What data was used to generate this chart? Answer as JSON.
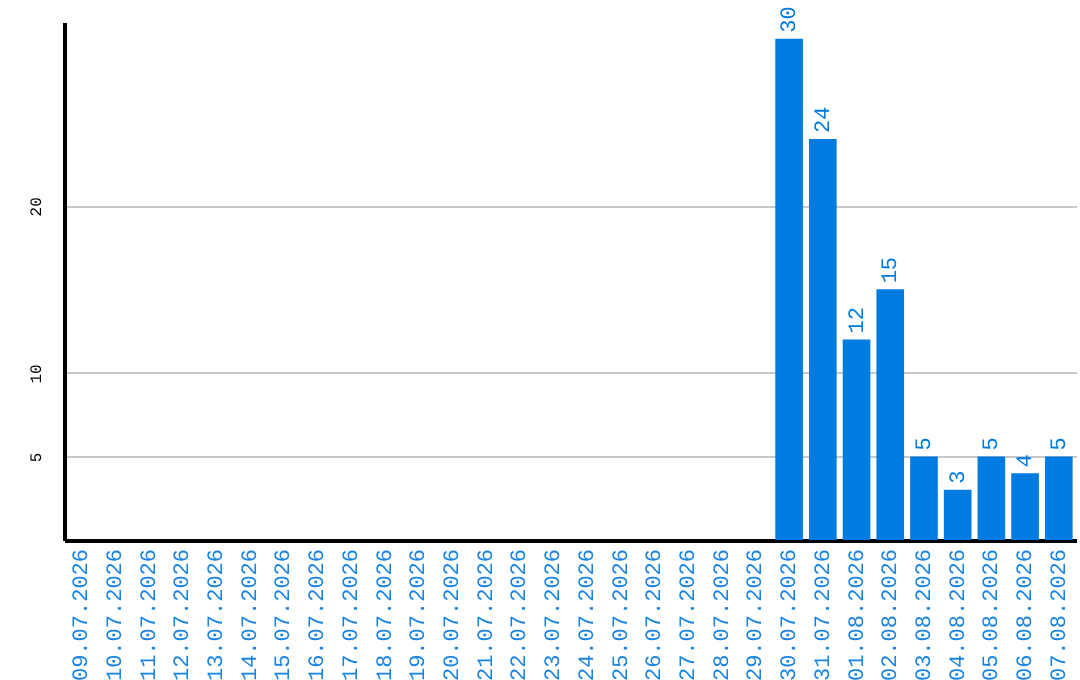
{
  "chart_data": {
    "type": "bar",
    "categories": [
      "09.07.2026",
      "10.07.2026",
      "11.07.2026",
      "12.07.2026",
      "13.07.2026",
      "14.07.2026",
      "15.07.2026",
      "16.07.2026",
      "17.07.2026",
      "18.07.2026",
      "19.07.2026",
      "20.07.2026",
      "21.07.2026",
      "22.07.2026",
      "23.07.2026",
      "24.07.2026",
      "25.07.2026",
      "26.07.2026",
      "27.07.2026",
      "28.07.2026",
      "29.07.2026",
      "30.07.2026",
      "31.07.2026",
      "01.08.2026",
      "02.08.2026",
      "03.08.2026",
      "04.08.2026",
      "05.08.2026",
      "06.08.2026",
      "07.08.2026"
    ],
    "values": [
      0,
      0,
      0,
      0,
      0,
      0,
      0,
      0,
      0,
      0,
      0,
      0,
      0,
      0,
      0,
      0,
      0,
      0,
      0,
      0,
      0,
      30,
      24,
      12,
      15,
      5,
      3,
      5,
      4,
      5
    ],
    "value_labels": [
      null,
      null,
      null,
      null,
      null,
      null,
      null,
      null,
      null,
      null,
      null,
      null,
      null,
      null,
      null,
      null,
      null,
      null,
      null,
      null,
      null,
      "30",
      "24",
      "12",
      "15",
      "5",
      "3",
      "5",
      "4",
      "5"
    ],
    "color": "#007be0",
    "ylim": [
      0,
      31
    ],
    "yticks": [
      5,
      10,
      20
    ],
    "grid": "y"
  }
}
